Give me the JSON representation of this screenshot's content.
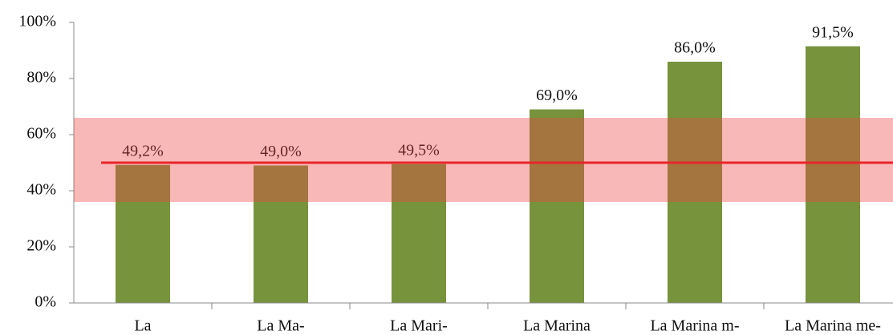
{
  "chart_data": {
    "type": "bar",
    "categories": [
      "La",
      "La Ma-",
      "La Mari-",
      "La Marina",
      "La Marina m-",
      "La Marina me-"
    ],
    "values": [
      49.2,
      49.0,
      49.5,
      69.0,
      86.0,
      91.5
    ],
    "value_labels": [
      "49,2%",
      "49,0%",
      "49,5%",
      "69,0%",
      "86,0%",
      "91,5%"
    ],
    "color": "#77933c",
    "ylim": [
      0,
      100
    ],
    "yticks": [
      {
        "value": 0,
        "label": "0%"
      },
      {
        "value": 20,
        "label": "20%"
      },
      {
        "value": 40,
        "label": "40%"
      },
      {
        "value": 60,
        "label": "60%"
      },
      {
        "value": 80,
        "label": "80%"
      },
      {
        "value": 100,
        "label": "100%"
      }
    ],
    "band_range": [
      36,
      66
    ],
    "band_color": "#ef4444",
    "reference_line": 50,
    "reference_color": "#e8262a"
  }
}
